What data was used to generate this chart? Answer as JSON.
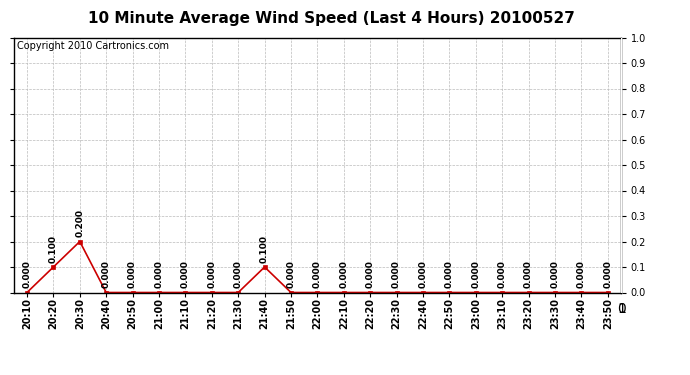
{
  "title": "10 Minute Average Wind Speed (Last 4 Hours) 20100527",
  "copyright_text": "Copyright 2010 Cartronics.com",
  "x_labels": [
    "20:10",
    "20:20",
    "20:30",
    "20:40",
    "20:50",
    "21:00",
    "21:10",
    "21:20",
    "21:30",
    "21:40",
    "21:50",
    "22:00",
    "22:10",
    "22:20",
    "22:30",
    "22:40",
    "22:50",
    "23:00",
    "23:10",
    "23:20",
    "23:30",
    "23:40",
    "23:50"
  ],
  "y_values": [
    0.0,
    0.1,
    0.2,
    0.0,
    0.0,
    0.0,
    0.0,
    0.0,
    0.0,
    0.1,
    0.0,
    0.0,
    0.0,
    0.0,
    0.0,
    0.0,
    0.0,
    0.0,
    0.0,
    0.0,
    0.0,
    0.0,
    0.0
  ],
  "line_color": "#CC0000",
  "marker_color": "#CC0000",
  "background_color": "#FFFFFF",
  "plot_bg_color": "#FFFFFF",
  "grid_color": "#BBBBBB",
  "ylim": [
    0.0,
    1.0
  ],
  "yticks": [
    0.0,
    0.1,
    0.2,
    0.3,
    0.4,
    0.5,
    0.6,
    0.7,
    0.8,
    0.9,
    1.0
  ],
  "title_fontsize": 11,
  "label_fontsize": 7,
  "annotation_fontsize": 6.5,
  "copyright_fontsize": 7
}
